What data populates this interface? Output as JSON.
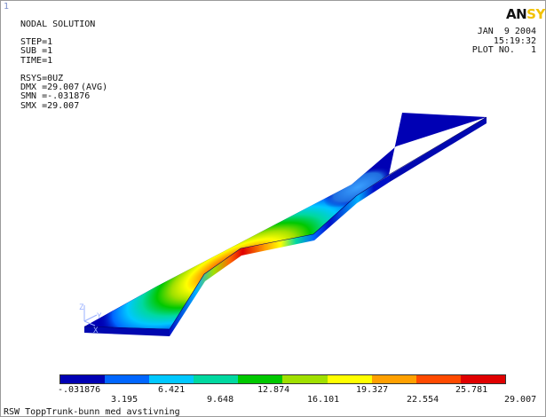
{
  "window_index": "1",
  "header": {
    "title": "NODAL SOLUTION",
    "lines": [
      "STEP=1",
      "SUB =1",
      "TIME=1"
    ],
    "result": "UZ",
    "result_qualifier": "(AVG)",
    "more_lines": [
      "RSYS=0",
      "DMX =29.007",
      "SMN =-.031876",
      "SMX =29.007"
    ]
  },
  "logo": {
    "part1": "AN",
    "part2": "SYS"
  },
  "date": "JAN  9 2004",
  "time": "15:19:32",
  "plot_no_label": "PLOT NO.",
  "plot_no_value": "1",
  "triad": {
    "z": "Z",
    "y": "Y",
    "x": "X"
  },
  "legend": {
    "colors": [
      "#0000b4",
      "#0066ff",
      "#00c8ff",
      "#00d8a0",
      "#00c800",
      "#a0e000",
      "#ffff00",
      "#ffa000",
      "#ff4a00",
      "#e00000"
    ],
    "labels_top": [
      "-.031876",
      "6.421",
      "12.874",
      "19.327",
      "25.781"
    ],
    "labels_bottom": [
      "3.195",
      "9.648",
      "16.101",
      "22.554",
      "29.007"
    ]
  },
  "caption": "RSW ToppTrunk-bunn med avstivning"
}
